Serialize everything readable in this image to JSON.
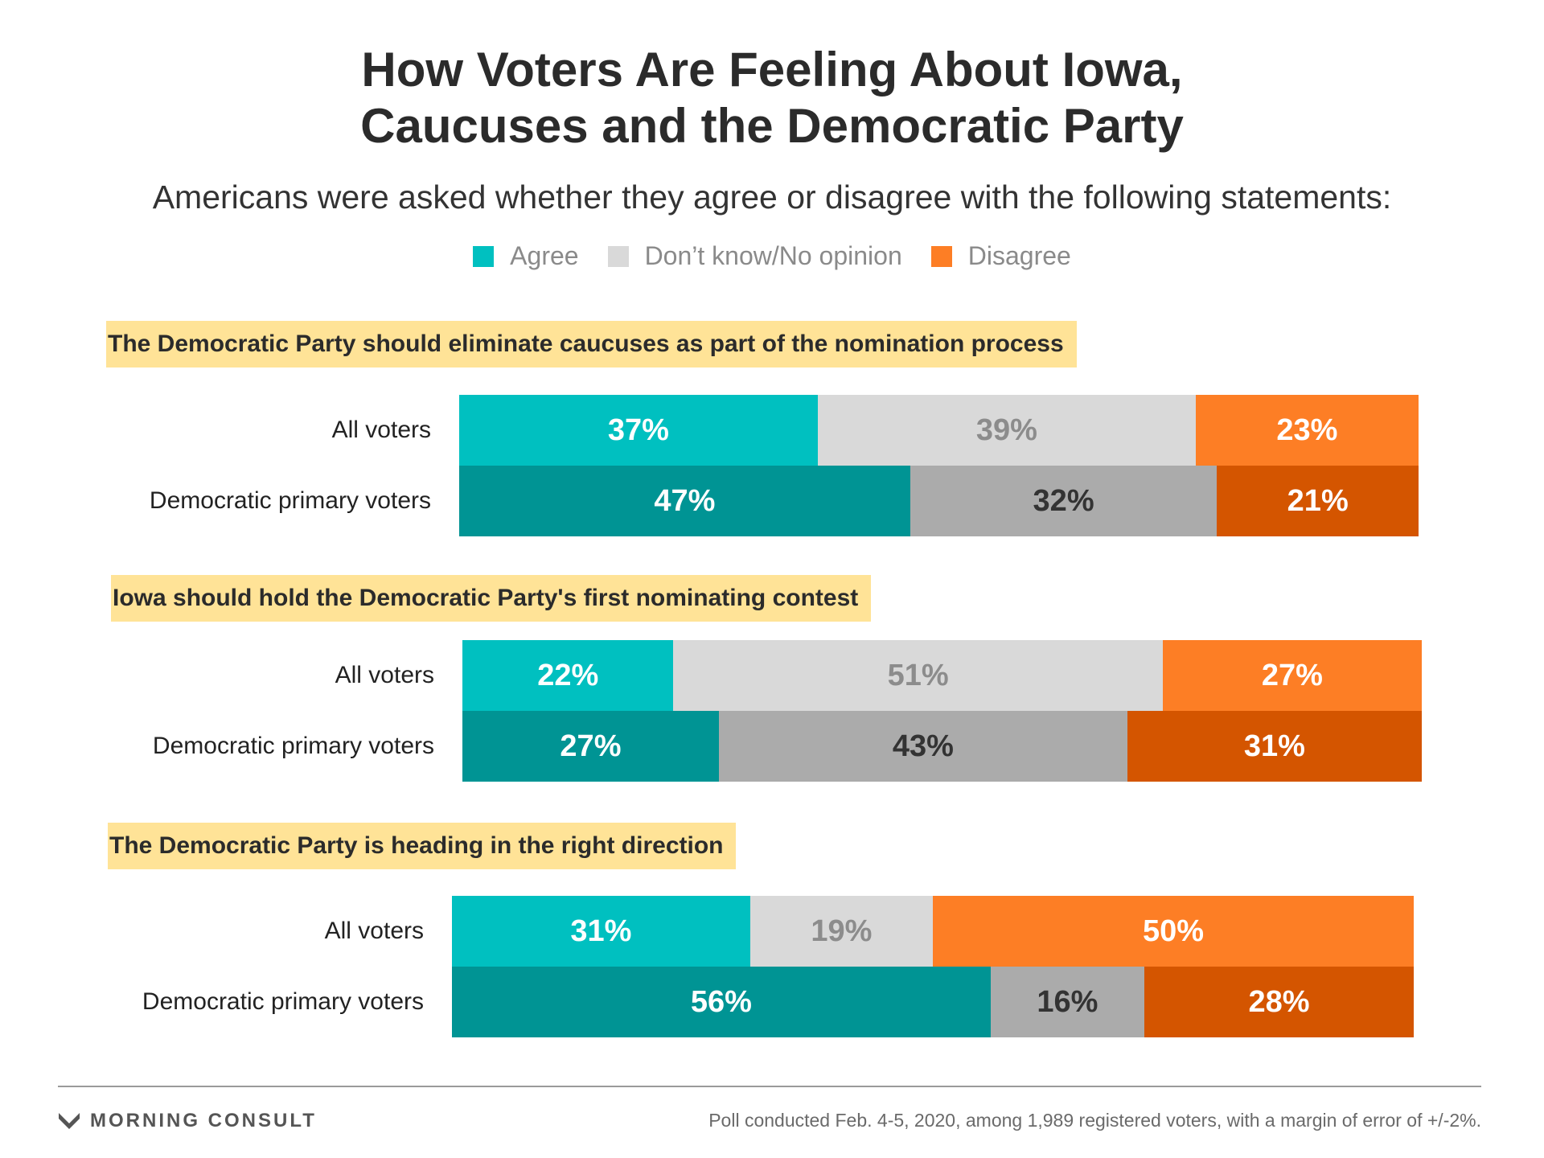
{
  "title_lines": [
    "How Voters Are Feeling About Iowa,",
    "Caucuses and the Democratic Party"
  ],
  "subtitle": "Americans were asked whether they agree or disagree with the following statements:",
  "legend": [
    {
      "label": "Agree",
      "color": "#00c0c0"
    },
    {
      "label": "Don’t know/No opinion",
      "color": "#d9d9d9"
    },
    {
      "label": "Disagree",
      "color": "#fd7e25"
    }
  ],
  "footer": {
    "brand": "MORNING CONSULT",
    "note": "Poll conducted Feb. 4-5, 2020, among 1,989 registered voters, with a margin of error of +/-2%."
  },
  "chart_data": {
    "type": "bar",
    "orientation": "horizontal",
    "stacked": true,
    "percent": true,
    "xlim": [
      0,
      100
    ],
    "legend_placement": "top-center",
    "series_names": [
      "Agree",
      "Don’t know/No opinion",
      "Disagree"
    ],
    "colors": {
      "All voters": [
        "#00c0c0",
        "#d9d9d9",
        "#fd7e25"
      ],
      "Democratic primary voters": [
        "#009494",
        "#ababab",
        "#d45500"
      ]
    },
    "label_colors": {
      "All voters": [
        "#ffffff",
        "#8c8c8c",
        "#ffffff"
      ],
      "Democratic primary voters": [
        "#ffffff",
        "#333333",
        "#ffffff"
      ]
    },
    "statements": [
      {
        "title": "The Democratic Party should eliminate caucuses as part of the nomination process",
        "rows": [
          {
            "label": "All voters",
            "values": [
              37,
              39,
              23
            ]
          },
          {
            "label": "Democratic primary voters",
            "values": [
              47,
              32,
              21
            ]
          }
        ]
      },
      {
        "title": "Iowa should hold the Democratic Party's first nominating contest",
        "rows": [
          {
            "label": "All voters",
            "values": [
              22,
              51,
              27
            ]
          },
          {
            "label": "Democratic primary voters",
            "values": [
              27,
              43,
              31
            ]
          }
        ]
      },
      {
        "title": "The Democratic Party is heading in the right direction",
        "rows": [
          {
            "label": "All voters",
            "values": [
              31,
              19,
              50
            ]
          },
          {
            "label": "Democratic primary voters",
            "values": [
              56,
              16,
              28
            ]
          }
        ]
      }
    ]
  }
}
